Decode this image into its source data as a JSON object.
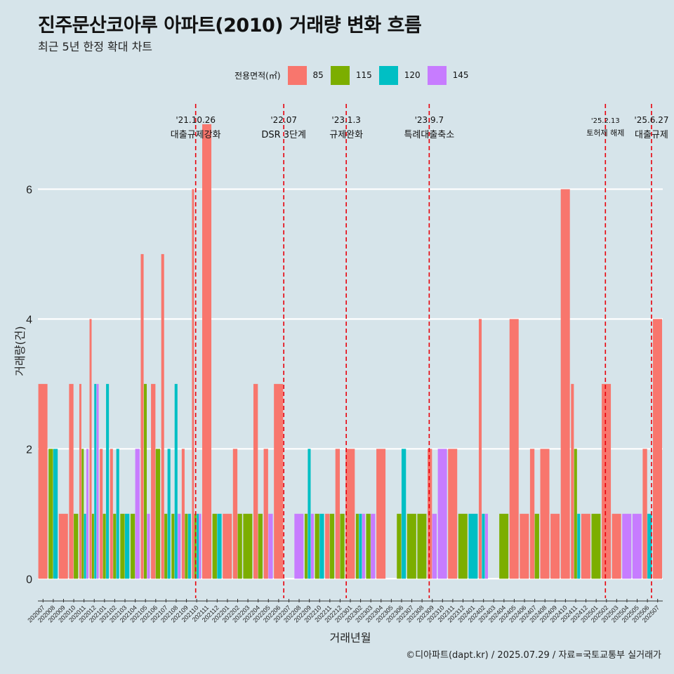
{
  "title": "진주문산코아루 아파트(2010) 거래량 변화 흐름",
  "subtitle": "최근 5년 한정 확대 차트",
  "caption": "©디아파트(dapt.kr) / 2025.07.29 / 자료=국토교통부 실거래가",
  "chart_data": {
    "type": "bar",
    "title": "진주문산코아루 아파트(2010) 거래량 변화 흐름",
    "xlabel": "거래년월",
    "ylabel": "거래량(건)",
    "ylim": [
      -0.3,
      7.4
    ],
    "yticks": [
      0,
      2,
      4,
      6
    ],
    "legend": {
      "title": "전용면적(㎡)",
      "position": "top",
      "entries": [
        {
          "name": "85",
          "color": "#F8766D"
        },
        {
          "name": "115",
          "color": "#7CAE00"
        },
        {
          "name": "120",
          "color": "#00BFC4"
        },
        {
          "name": "145",
          "color": "#C77CFF"
        }
      ]
    },
    "categories": [
      "202007",
      "202008",
      "202009",
      "202010",
      "202011",
      "202012",
      "202101",
      "202102",
      "202103",
      "202104",
      "202105",
      "202106",
      "202107",
      "202108",
      "202109",
      "202110",
      "202111",
      "202112",
      "202201",
      "202202",
      "202203",
      "202204",
      "202205",
      "202206",
      "202207",
      "202208",
      "202209",
      "202210",
      "202211",
      "202212",
      "202301",
      "202302",
      "202303",
      "202304",
      "202305",
      "202306",
      "202307",
      "202308",
      "202309",
      "202310",
      "202311",
      "202312",
      "202401",
      "202402",
      "202403",
      "202404",
      "202405",
      "202406",
      "202407",
      "202408",
      "202409",
      "202410",
      "202411",
      "202412",
      "202501",
      "202502",
      "202503",
      "202504",
      "202505",
      "202506",
      "202507"
    ],
    "series": [
      {
        "name": "85",
        "color": "#F8766D",
        "values": [
          3,
          0,
          1,
          3,
          3,
          4,
          2,
          2,
          0,
          0,
          5,
          3,
          5,
          0,
          2,
          6,
          7,
          0,
          1,
          2,
          0,
          3,
          2,
          3,
          0,
          0,
          0,
          0,
          1,
          2,
          2,
          0,
          0,
          2,
          0,
          0,
          0,
          0,
          2,
          0,
          2,
          0,
          0,
          4,
          0,
          0,
          4,
          1,
          2,
          2,
          1,
          6,
          3,
          1,
          0,
          3,
          1,
          0,
          0,
          2,
          4
        ]
      },
      {
        "name": "115",
        "color": "#7CAE00",
        "values": [
          0,
          2,
          0,
          1,
          2,
          1,
          1,
          1,
          1,
          1,
          3,
          2,
          1,
          1,
          1,
          1,
          0,
          1,
          0,
          1,
          1,
          1,
          0,
          0,
          0,
          0,
          1,
          1,
          1,
          1,
          0,
          1,
          1,
          0,
          0,
          1,
          1,
          1,
          0,
          0,
          0,
          1,
          0,
          0,
          0,
          1,
          0,
          0,
          1,
          0,
          0,
          0,
          2,
          0,
          1,
          0,
          0,
          0,
          0,
          0,
          0
        ]
      },
      {
        "name": "120",
        "color": "#00BFC4",
        "values": [
          0,
          2,
          0,
          0,
          1,
          3,
          3,
          2,
          1,
          0,
          0,
          0,
          2,
          3,
          1,
          1,
          0,
          1,
          0,
          0,
          0,
          0,
          0,
          0,
          0,
          0,
          2,
          1,
          0,
          0,
          0,
          1,
          0,
          0,
          0,
          2,
          0,
          0,
          0,
          0,
          0,
          0,
          1,
          1,
          0,
          0,
          0,
          0,
          0,
          0,
          0,
          0,
          1,
          0,
          0,
          0,
          0,
          0,
          0,
          1,
          0
        ]
      },
      {
        "name": "145",
        "color": "#C77CFF",
        "values": [
          0,
          0,
          0,
          0,
          2,
          3,
          0,
          0,
          0,
          2,
          1,
          0,
          0,
          1,
          0,
          1,
          0,
          0,
          0,
          0,
          0,
          0,
          1,
          0,
          0,
          1,
          1,
          0,
          0,
          0,
          0,
          1,
          1,
          0,
          0,
          0,
          0,
          0,
          1,
          2,
          0,
          0,
          0,
          1,
          0,
          0,
          0,
          0,
          0,
          0,
          0,
          0,
          0,
          0,
          0,
          0,
          0,
          1,
          1,
          0,
          0
        ]
      }
    ],
    "events": [
      {
        "date_label": "'21.10.26",
        "desc": "대출규제강화",
        "index": 15.4
      },
      {
        "date_label": "'22.07",
        "desc": "DSR 3단계",
        "index": 24.0
      },
      {
        "date_label": "'23.1.3",
        "desc": "규제완화",
        "index": 30.1
      },
      {
        "date_label": "'23.9.7",
        "desc": "특례대출축소",
        "index": 38.2
      },
      {
        "date_label": "'25.2.13",
        "desc": "토허제 해제",
        "index": 55.4
      },
      {
        "date_label": "'25.6.27",
        "desc": "대출규제",
        "index": 59.9
      }
    ]
  }
}
